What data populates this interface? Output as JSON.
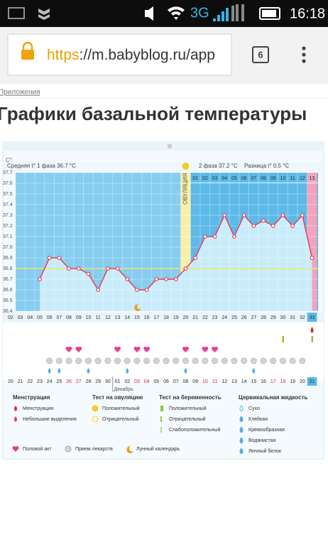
{
  "status_bar": {
    "network": "3G",
    "time": "16:18"
  },
  "browser": {
    "url_scheme": "https",
    "url_rest": "://m.babyblog.ru/app",
    "tabs": "6"
  },
  "breadcrumb": "Приложения",
  "title": "Графики базальной температуры",
  "chart_data": {
    "type": "area",
    "y_unit": "C°",
    "phase1_label": "Средняя t° 1 фаза 36.7 °C",
    "phase2_label": "2 фаза 37.2 °C",
    "difference_label": "Разница t° 0.5 °C",
    "ovulation_label": "ОВУЛЯЦИЯ",
    "categories": [
      "02",
      "03",
      "04",
      "05",
      "06",
      "07",
      "08",
      "09",
      "10",
      "11",
      "12",
      "13",
      "14",
      "15",
      "16",
      "17",
      "18",
      "19",
      "20",
      "21",
      "22",
      "23",
      "24",
      "25",
      "26",
      "27",
      "28",
      "29",
      "30",
      "31",
      "32",
      "33"
    ],
    "phase2_days": [
      "01",
      "02",
      "03",
      "04",
      "05",
      "06",
      "07",
      "08",
      "09",
      "10",
      "11",
      "12",
      "13"
    ],
    "dates": [
      "20",
      "21",
      "22",
      "23",
      "24",
      "25",
      "26",
      "27",
      "28",
      "29",
      "30",
      "01",
      "02",
      "03",
      "04",
      "05",
      "06",
      "07",
      "08",
      "09",
      "10",
      "11",
      "12",
      "13",
      "14",
      "15",
      "16",
      "17",
      "18",
      "19",
      "20",
      "21"
    ],
    "month": "Декабрь",
    "values": [
      null,
      null,
      null,
      36.7,
      36.9,
      36.9,
      36.8,
      36.8,
      36.75,
      36.6,
      36.8,
      36.8,
      36.7,
      36.6,
      36.6,
      36.7,
      36.7,
      36.7,
      36.8,
      36.9,
      37.1,
      37.1,
      37.3,
      37.1,
      37.3,
      37.2,
      37.25,
      37.2,
      37.3,
      37.2,
      37.3,
      36.9
    ],
    "coverline": 36.8,
    "ylim": [
      36.4,
      37.7
    ],
    "yticks": [
      36.4,
      36.5,
      36.6,
      36.7,
      36.8,
      36.9,
      {
        "value": 37,
        "label": "37.0"
      },
      37.1,
      37.2,
      37.3,
      37.4,
      37.5,
      37.6,
      37.7
    ]
  },
  "legend": [
    {
      "title": "Менструация",
      "items": [
        "Менструация",
        "Небольшие выделения"
      ]
    },
    {
      "title": "Тест на овуляцию",
      "items": [
        "Положительный",
        "Отрицательный"
      ]
    },
    {
      "title": "Тест на беременность",
      "items": [
        "Положительный",
        "Отрицательный",
        "Слабоположительный"
      ]
    },
    {
      "title": "Цервикальная жидкость",
      "items": [
        "Сухо",
        "Клейкая",
        "Кремообразная",
        "Водянистая",
        "Яичный белок"
      ]
    }
  ],
  "legend_extra": [
    "Половой акт",
    "Прием лекарств",
    "Лунный календарь"
  ]
}
